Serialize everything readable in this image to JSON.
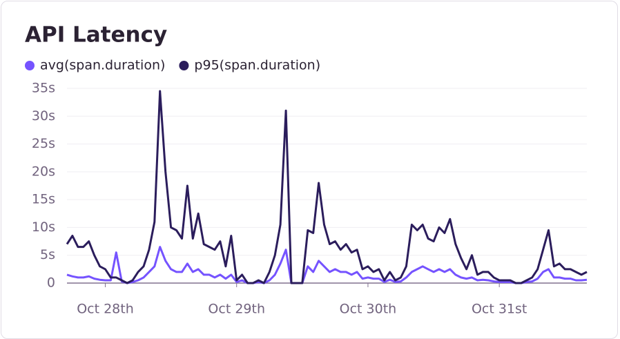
{
  "chart_data": {
    "type": "line",
    "title": "API Latency",
    "categories": [
      null,
      null,
      null,
      null,
      null,
      null,
      null,
      "Oct 28th",
      null,
      null,
      null,
      null,
      null,
      null,
      null,
      null,
      null,
      null,
      null,
      null,
      null,
      null,
      null,
      null,
      null,
      null,
      null,
      null,
      null,
      null,
      null,
      "Oct 29th",
      null,
      null,
      null,
      null,
      null,
      null,
      null,
      null,
      null,
      null,
      null,
      null,
      null,
      null,
      null,
      null,
      null,
      null,
      null,
      null,
      null,
      null,
      null,
      "Oct 30th",
      null,
      null,
      null,
      null,
      null,
      null,
      null,
      null,
      null,
      null,
      null,
      null,
      null,
      null,
      null,
      null,
      null,
      null,
      null,
      null,
      null,
      null,
      null,
      "Oct 31st",
      null,
      null,
      null,
      null,
      null,
      null,
      null,
      null,
      null,
      null,
      null,
      null,
      null,
      null,
      null,
      null
    ],
    "series": [
      {
        "name": "avg(span.duration)",
        "color": "#7553ff",
        "values": [
          1.5,
          1.2,
          1,
          1,
          1.2,
          0.8,
          0.6,
          0.5,
          0.5,
          5.5,
          0.3,
          0,
          0.2,
          0.5,
          1,
          2,
          3,
          6.5,
          4,
          2.5,
          2,
          2,
          3.5,
          2,
          2.5,
          1.5,
          1.5,
          1,
          1.5,
          0.8,
          1.5,
          0.2,
          0.5,
          0,
          0,
          0.2,
          0,
          0.5,
          1.5,
          3.5,
          6,
          0,
          0,
          0,
          3,
          2,
          4,
          3,
          2,
          2.5,
          2,
          2,
          1.5,
          2,
          0.8,
          1,
          0.8,
          0.8,
          0.2,
          0.6,
          0.2,
          0.3,
          1,
          2,
          2.5,
          3,
          2.5,
          2,
          2.5,
          2,
          2.5,
          1.5,
          1,
          0.8,
          1,
          0.5,
          0.6,
          0.5,
          0.3,
          0.2,
          0.2,
          0.2,
          0,
          0,
          0.2,
          0.3,
          0.8,
          2,
          2.5,
          1,
          1,
          0.8,
          0.8,
          0.5,
          0.5,
          0.6
        ]
      },
      {
        "name": "p95(span.duration)",
        "color": "#2b1d5c",
        "values": [
          7,
          8.5,
          6.5,
          6.5,
          7.5,
          5,
          3,
          2.5,
          1,
          1,
          0.5,
          0,
          0.5,
          2,
          3,
          6,
          11,
          34.5,
          20,
          10,
          9.5,
          8,
          17.5,
          8,
          12.5,
          7,
          6.5,
          6,
          7.5,
          3,
          8.5,
          0.5,
          1.5,
          0,
          0,
          0.5,
          0,
          2,
          5,
          10.5,
          31,
          0,
          0,
          0,
          9.5,
          9,
          18,
          10.5,
          7,
          7.5,
          6,
          7,
          5.5,
          6,
          2.5,
          3,
          2,
          2.5,
          0.5,
          2,
          0.5,
          1,
          3,
          10.5,
          9.5,
          10.5,
          8,
          7.5,
          10,
          9,
          11.5,
          7,
          4.5,
          2.5,
          5,
          1.5,
          2,
          2,
          1,
          0.5,
          0.5,
          0.5,
          0,
          0,
          0.5,
          1,
          2.5,
          6,
          9.5,
          3,
          3.5,
          2.5,
          2.5,
          2,
          1.5,
          2
        ]
      }
    ],
    "ylim": [
      0,
      35
    ],
    "yticks": [
      0,
      {
        "value": 5,
        "label": "5s"
      },
      {
        "value": 10,
        "label": "10s"
      },
      {
        "value": 15,
        "label": "15s"
      },
      {
        "value": 20,
        "label": "20s"
      },
      {
        "value": 25,
        "label": "25s"
      },
      {
        "value": 30,
        "label": "30s"
      },
      {
        "value": 35,
        "label": "35s"
      }
    ],
    "grid": true
  }
}
